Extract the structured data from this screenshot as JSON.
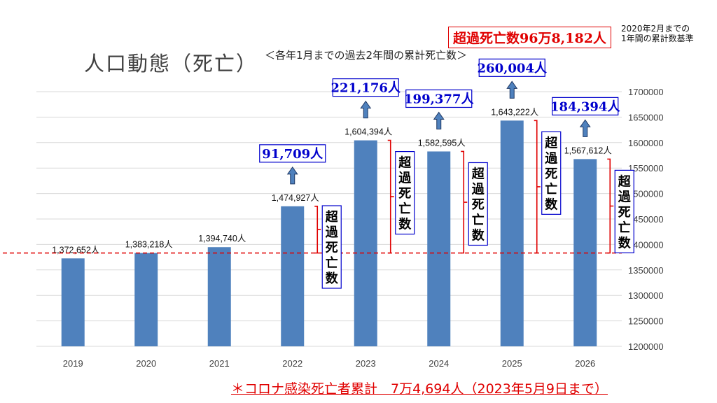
{
  "title": "人口動態（死亡）",
  "subtitle": "＜各年1月までの過去2年間の累計死亡数＞",
  "total_excess": "超過死亡数96万8,182人",
  "baseline_note": [
    "2020年2月までの",
    "1年間の累計数基準"
  ],
  "footnote": "＊コロナ感染死亡者累計　7万4,694人（2023年5月9日まで）",
  "excess_label": "超過死亡数",
  "colors": {
    "bar": "#4f81bd",
    "accent": "#e00000",
    "blue": "#0000cc"
  },
  "chart_data": {
    "type": "bar",
    "categories": [
      "2019",
      "2020",
      "2021",
      "2022",
      "2023",
      "2024",
      "2025",
      "2026"
    ],
    "values": [
      1372652,
      1383218,
      1394740,
      1474927,
      1604394,
      1582595,
      1643222,
      1567612
    ],
    "data_labels": [
      "1,372,652人",
      "1,383,218人",
      "1,394,740人",
      "1,474,927人",
      "1,604,394人",
      "1,582,595人",
      "1,643,222人",
      "1,567,612人"
    ],
    "ylim": [
      1200000,
      1700000
    ],
    "yticks": [
      1200000,
      1250000,
      1300000,
      1350000,
      1400000,
      1450000,
      1500000,
      1550000,
      1600000,
      1650000,
      1700000
    ],
    "ytick_labels": [
      "1200000",
      "1250000",
      "1300000",
      "1350000",
      "1400000",
      "1450000",
      "1500000",
      "1550000",
      "1600000",
      "1650000",
      "1700000"
    ],
    "reference_line": 1383218,
    "excess": [
      {
        "year": "2022",
        "value": 91709,
        "label": "91,709人"
      },
      {
        "year": "2023",
        "value": 221176,
        "label": "221,176人"
      },
      {
        "year": "2024",
        "value": 199377,
        "label": "199,377人"
      },
      {
        "year": "2025",
        "value": 260004,
        "label": "260,004人"
      },
      {
        "year": "2026",
        "value": 184394,
        "label": "184,394人"
      }
    ],
    "y_axis_position": "right",
    "grid": true
  }
}
